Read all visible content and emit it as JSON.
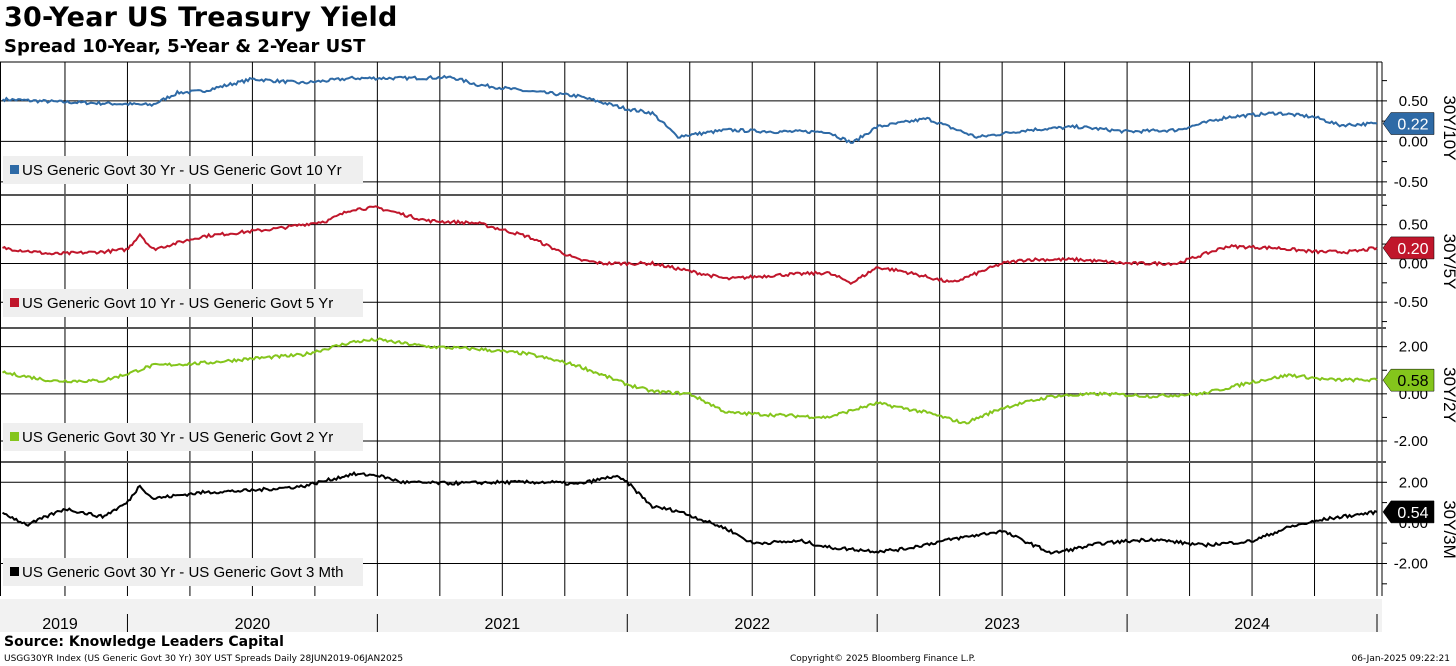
{
  "header": {
    "title": "30-Year US Treasury Yield",
    "subtitle": "Spread 10-Year, 5-Year & 2-Year UST"
  },
  "footer": {
    "source": "Source: Knowledge Leaders Capital",
    "index_info": "USGG30YR Index (US Generic Govt 30 Yr) 30Y UST Spreads  Daily 28JUN2019-06JAN2025",
    "copyright": "Copyright© 2025 Bloomberg Finance L.P.",
    "timestamp": "06-Jan-2025 09:22:21"
  },
  "chart_data": [
    {
      "type": "line",
      "series": [
        {
          "name": "US Generic Govt 30 Yr - US Generic Govt 10 Yr",
          "color": "#2e6aa6",
          "x": [
            2019.5,
            2019.7,
            2019.9,
            2020.1,
            2020.2,
            2020.3,
            2020.5,
            2020.7,
            2020.9,
            2021.1,
            2021.3,
            2021.4,
            2021.6,
            2021.8,
            2022.0,
            2022.1,
            2022.2,
            2022.4,
            2022.6,
            2022.8,
            2022.9,
            2023.0,
            2023.2,
            2023.4,
            2023.6,
            2023.8,
            2024.0,
            2024.2,
            2024.4,
            2024.6,
            2024.75,
            2024.85,
            2025.0
          ],
          "values": [
            0.52,
            0.49,
            0.47,
            0.45,
            0.6,
            0.62,
            0.77,
            0.72,
            0.78,
            0.78,
            0.79,
            0.7,
            0.62,
            0.56,
            0.4,
            0.35,
            0.06,
            0.14,
            0.12,
            0.12,
            -0.02,
            0.18,
            0.28,
            0.05,
            0.14,
            0.18,
            0.12,
            0.14,
            0.3,
            0.35,
            0.3,
            0.2,
            0.22
          ]
        }
      ],
      "ylim": [
        -0.65,
        0.98
      ],
      "y_ticks": [
        "0.50",
        "0.00",
        "-0.50"
      ],
      "y_tick_values": [
        0.5,
        0,
        -0.5
      ],
      "ylabel": "30Y/10Y",
      "last_value": "0.22"
    },
    {
      "type": "line",
      "series": [
        {
          "name": "US Generic Govt 10 Yr - US Generic Govt 5 Yr",
          "color": "#c0162b",
          "x": [
            2019.5,
            2019.7,
            2019.9,
            2020.0,
            2020.05,
            2020.1,
            2020.3,
            2020.6,
            2020.8,
            2020.9,
            2021.0,
            2021.2,
            2021.4,
            2021.6,
            2021.8,
            2021.9,
            2022.1,
            2022.4,
            2022.6,
            2022.8,
            2022.9,
            2023.0,
            2023.1,
            2023.3,
            2023.5,
            2023.6,
            2023.8,
            2024.0,
            2024.2,
            2024.4,
            2024.6,
            2024.75,
            2024.9,
            2025.0
          ],
          "values": [
            0.2,
            0.12,
            0.15,
            0.18,
            0.38,
            0.18,
            0.35,
            0.45,
            0.55,
            0.7,
            0.72,
            0.55,
            0.52,
            0.35,
            0.05,
            0.0,
            0.0,
            -0.2,
            -0.15,
            -0.12,
            -0.25,
            -0.05,
            -0.1,
            -0.25,
            0.0,
            0.05,
            0.05,
            0.0,
            0.0,
            0.22,
            0.2,
            0.15,
            0.15,
            0.2
          ]
        }
      ],
      "ylim": [
        -0.82,
        0.87
      ],
      "y_ticks": [
        "0.50",
        "0.00",
        "-0.50"
      ],
      "y_tick_values": [
        0.5,
        0,
        -0.5
      ],
      "ylabel": "30Y/5Y",
      "last_value": "0.20"
    },
    {
      "type": "line",
      "series": [
        {
          "name": "US Generic Govt 30 Yr - US Generic Govt 2 Yr",
          "color": "#84c51c",
          "x": [
            2019.5,
            2019.7,
            2019.9,
            2020.0,
            2020.1,
            2020.3,
            2020.5,
            2020.7,
            2020.9,
            2021.0,
            2021.2,
            2021.4,
            2021.6,
            2021.8,
            2022.0,
            2022.1,
            2022.25,
            2022.4,
            2022.6,
            2022.8,
            2022.9,
            2023.0,
            2023.2,
            2023.35,
            2023.5,
            2023.7,
            2023.9,
            2024.1,
            2024.3,
            2024.5,
            2024.65,
            2024.8,
            2025.0
          ],
          "values": [
            0.9,
            0.55,
            0.55,
            0.85,
            1.2,
            1.3,
            1.5,
            1.65,
            2.2,
            2.3,
            2.0,
            1.9,
            1.7,
            1.2,
            0.4,
            0.1,
            0.0,
            -0.8,
            -0.9,
            -1.0,
            -0.7,
            -0.4,
            -0.8,
            -1.25,
            -0.6,
            -0.1,
            0.0,
            -0.1,
            0.0,
            0.5,
            0.8,
            0.6,
            0.58
          ]
        }
      ],
      "ylim": [
        -2.85,
        2.75
      ],
      "y_ticks": [
        "2.00",
        "0.00",
        "-2.00"
      ],
      "y_tick_values": [
        2,
        0,
        -2
      ],
      "ylabel": "30Y/2Y",
      "last_value": "0.58"
    },
    {
      "type": "line",
      "series": [
        {
          "name": "US Generic Govt 30 Yr - US Generic Govt 3 Mth",
          "color": "#000000",
          "x": [
            2019.5,
            2019.6,
            2019.75,
            2019.9,
            2020.0,
            2020.05,
            2020.1,
            2020.3,
            2020.5,
            2020.7,
            2020.9,
            2021.0,
            2021.1,
            2021.3,
            2021.5,
            2021.7,
            2021.8,
            2021.95,
            2022.0,
            2022.1,
            2022.2,
            2022.4,
            2022.5,
            2022.7,
            2022.8,
            2023.0,
            2023.1,
            2023.3,
            2023.5,
            2023.7,
            2023.9,
            2024.1,
            2024.3,
            2024.5,
            2024.65,
            2024.8,
            2025.0
          ],
          "values": [
            0.5,
            -0.1,
            0.7,
            0.3,
            1.0,
            1.85,
            1.2,
            1.5,
            1.6,
            1.8,
            2.4,
            2.35,
            2.0,
            1.95,
            2.0,
            2.0,
            1.9,
            2.3,
            2.0,
            0.8,
            0.6,
            -0.3,
            -1.0,
            -0.9,
            -1.2,
            -1.4,
            -1.3,
            -0.8,
            -0.4,
            -1.5,
            -1.0,
            -0.8,
            -1.1,
            -0.9,
            -0.2,
            0.2,
            0.54
          ]
        }
      ],
      "ylim": [
        -3.6,
        2.95
      ],
      "y_ticks": [
        "2.00",
        "0.00",
        "-2.00"
      ],
      "y_tick_values": [
        2,
        0,
        -2
      ],
      "ylabel": "30Y/3M",
      "last_value": "0.54"
    }
  ],
  "x_axis": {
    "labels": [
      "2019",
      "2020",
      "2021",
      "2022",
      "2023",
      "2024"
    ],
    "label_positions": [
      2019.75,
      2020.5,
      2021.5,
      2022.5,
      2023.5,
      2024.5
    ],
    "year_ticks": [
      2020,
      2021,
      2022,
      2023,
      2024,
      2025
    ],
    "xlim": [
      2019.49,
      2025.02
    ]
  },
  "grid": true,
  "legend_placement": "lower-left of each panel"
}
